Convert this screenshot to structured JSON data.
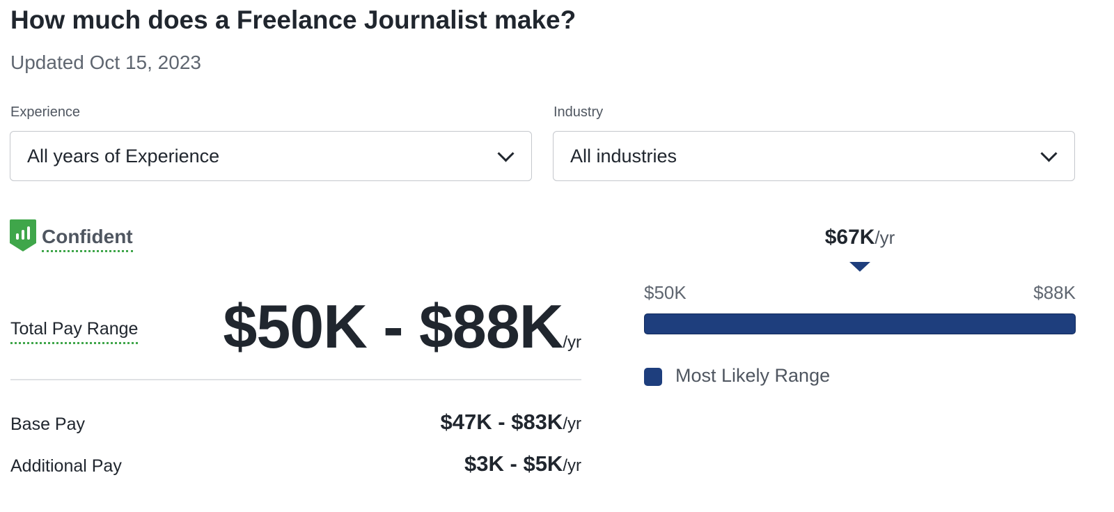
{
  "header": {
    "title": "How much does a Freelance Journalist make?",
    "updated": "Updated Oct 15, 2023"
  },
  "filters": {
    "experience": {
      "label": "Experience",
      "value": "All years of Experience"
    },
    "industry": {
      "label": "Industry",
      "value": "All industries"
    }
  },
  "confidence": {
    "label": "Confident",
    "icon": "shield-bar-chart-icon",
    "color": "#3fa64a"
  },
  "pay": {
    "total_label": "Total Pay Range",
    "total_value": "$50K - $88K",
    "unit": "/yr",
    "base_label": "Base Pay",
    "base_value": "$47K - $83K",
    "additional_label": "Additional Pay",
    "additional_value": "$3K - $5K"
  },
  "range_chart": {
    "median_label": "$67K",
    "unit": "/yr",
    "min_label": "$50K",
    "max_label": "$88K",
    "min": 50,
    "max": 88,
    "median": 67,
    "legend": "Most Likely Range",
    "bar_color": "#1e3e7d"
  }
}
